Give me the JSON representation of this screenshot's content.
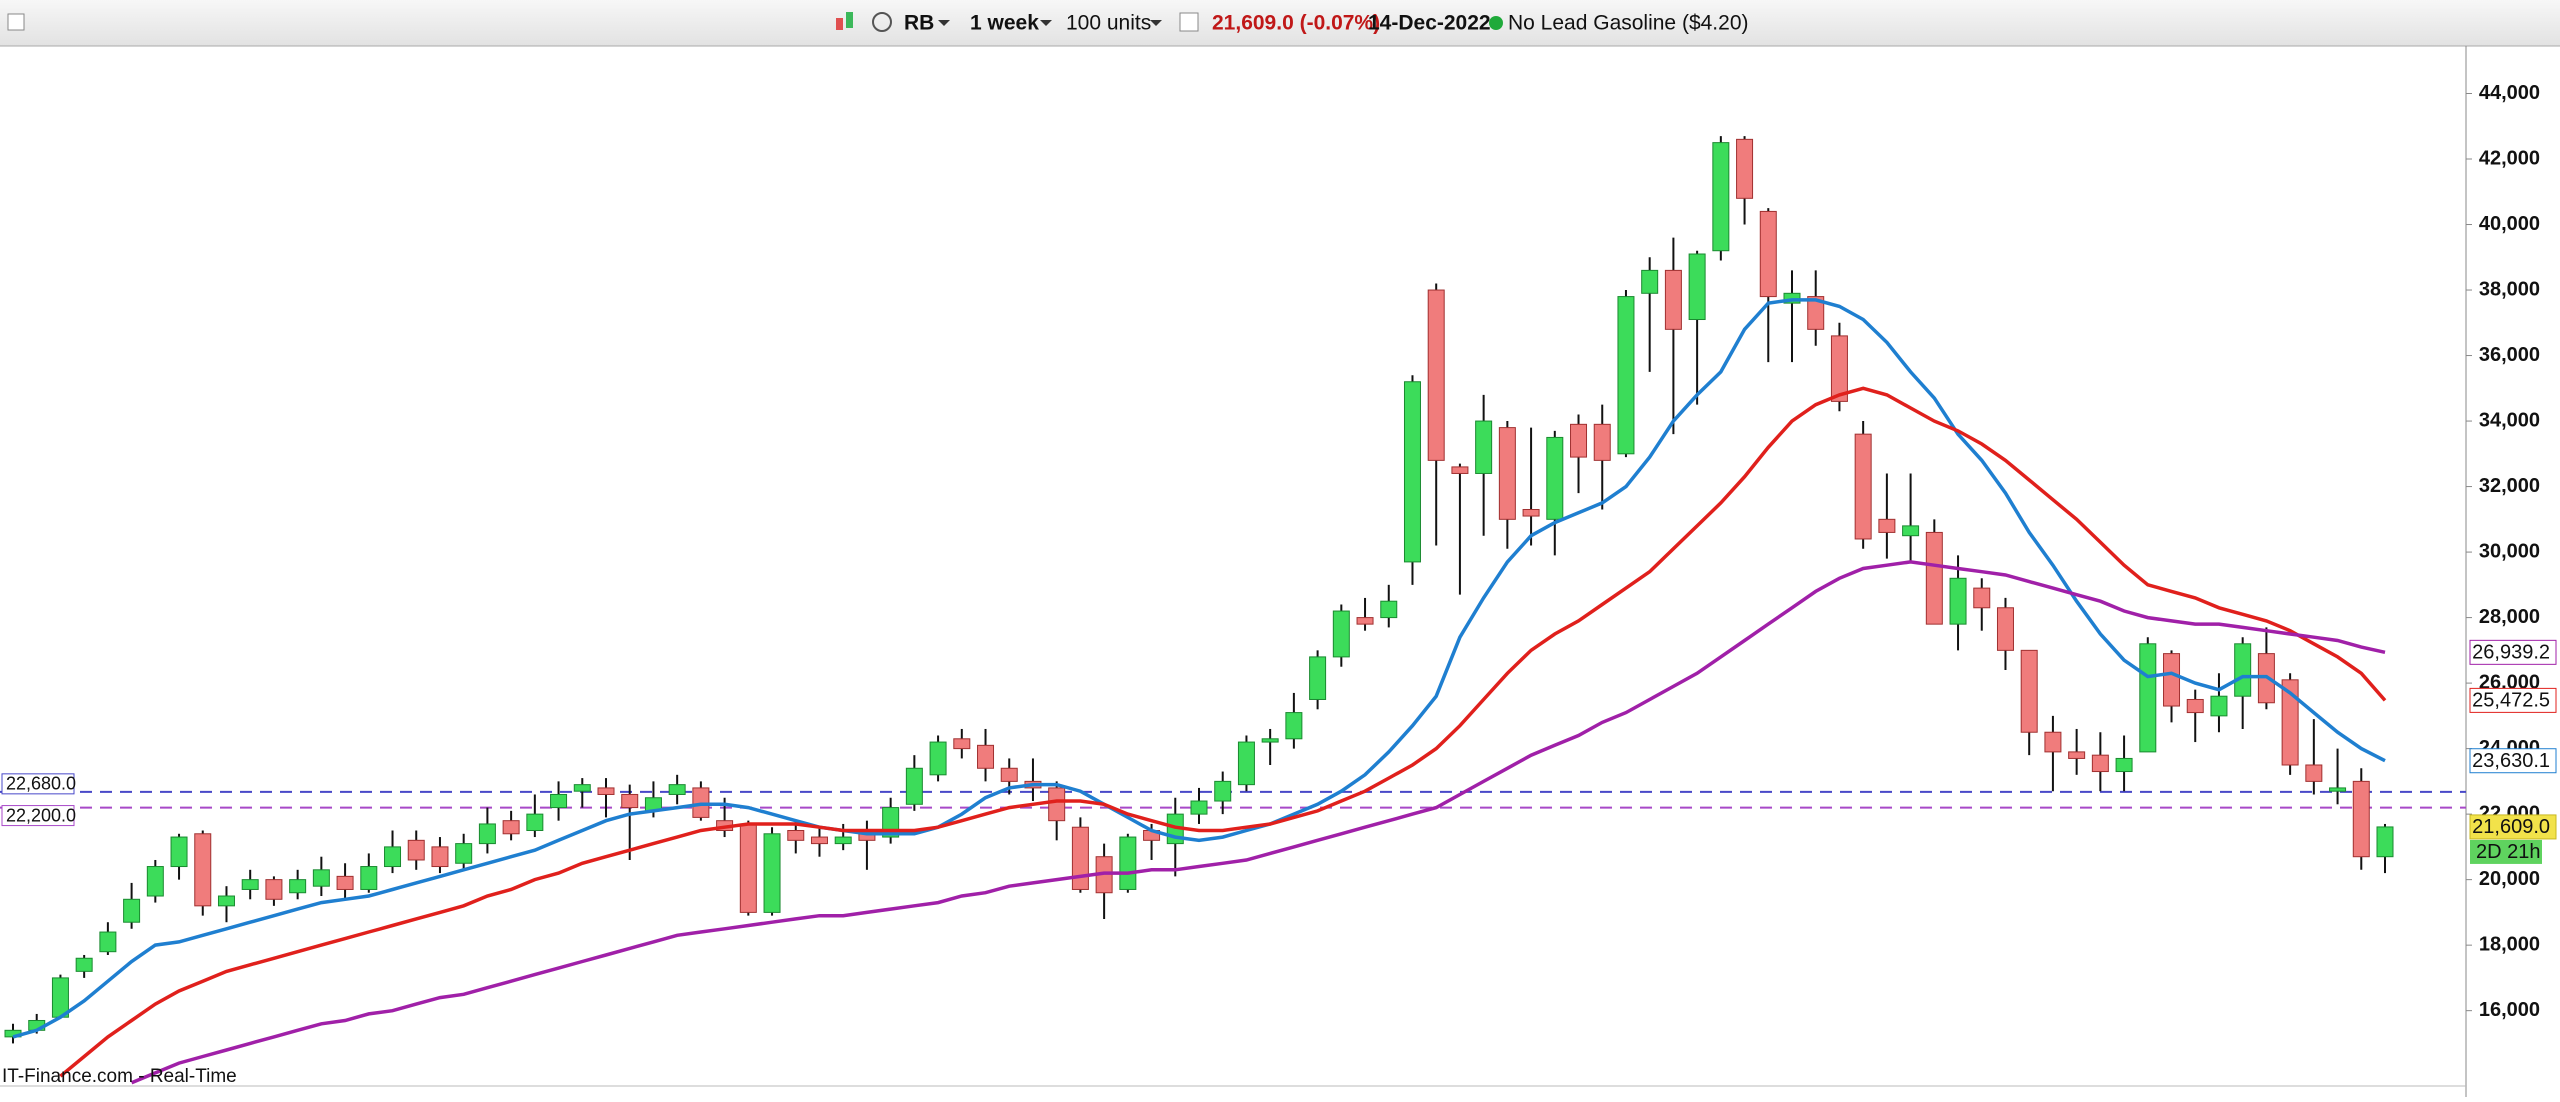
{
  "toolbar": {
    "symbol": "RB",
    "interval": "1 week",
    "units": "100 units",
    "quote": "21,609.0 (-0.07%)",
    "date": "14-Dec-2022",
    "instrument": "No Lead Gasoline ($4.20)"
  },
  "footer": "IT-Finance.com - Real-Time",
  "chart_data": {
    "type": "candlestick",
    "up_color": "#3cdc5a",
    "down_color": "#f07c7c",
    "ylim": [
      13700,
      45450
    ],
    "yticks": [
      {
        "value": 16000,
        "label": "16,000"
      },
      {
        "value": 18000,
        "label": "18,000"
      },
      {
        "value": 20000,
        "label": "20,000"
      },
      {
        "value": 22000,
        "label": "22,000"
      },
      {
        "value": 24000,
        "label": "24,000"
      },
      {
        "value": 26000,
        "label": "26,000"
      },
      {
        "value": 28000,
        "label": "28,000"
      },
      {
        "value": 30000,
        "label": "30,000"
      },
      {
        "value": 32000,
        "label": "32,000"
      },
      {
        "value": 34000,
        "label": "34,000"
      },
      {
        "value": 36000,
        "label": "36,000"
      },
      {
        "value": 38000,
        "label": "38,000"
      },
      {
        "value": 40000,
        "label": "40,000"
      },
      {
        "value": 42000,
        "label": "42,000"
      },
      {
        "value": 44000,
        "label": "44,000"
      }
    ],
    "open": [
      15200,
      15400,
      15800,
      17200,
      17800,
      18700,
      19500,
      20400,
      21400,
      19200,
      19700,
      20000,
      19600,
      19800,
      20100,
      19700,
      20400,
      21200,
      21000,
      20500,
      21100,
      21800,
      21500,
      22200,
      22700,
      22800,
      22600,
      22100,
      22600,
      22800,
      21800,
      21700,
      19000,
      21500,
      21300,
      21100,
      21400,
      21300,
      22300,
      23200,
      24300,
      24100,
      23400,
      23000,
      22800,
      21600,
      20700,
      19700,
      21500,
      21100,
      22000,
      22400,
      22900,
      24200,
      24300,
      25500,
      26800,
      28000,
      28000,
      29700,
      38000,
      32600,
      32400,
      33800,
      31300,
      31000,
      33900,
      33900,
      33000,
      37900,
      38600,
      37100,
      39200,
      42600,
      40400,
      37600,
      37800,
      36600,
      33600,
      31000,
      30500,
      30600,
      27800,
      28900,
      28300,
      27000,
      24500,
      23900,
      23800,
      23300,
      23900,
      26900,
      25500,
      25000,
      25600,
      26900,
      26100,
      23500,
      22700,
      23000,
      20700
    ],
    "high": [
      15600,
      15900,
      17100,
      17700,
      18700,
      19900,
      20600,
      21400,
      21500,
      19800,
      20300,
      20100,
      20300,
      20700,
      20500,
      20800,
      21500,
      21500,
      21300,
      21400,
      22200,
      22100,
      22600,
      23000,
      23100,
      23100,
      22900,
      23000,
      23200,
      23000,
      22500,
      21800,
      21600,
      21800,
      21600,
      21700,
      21800,
      22500,
      23800,
      24400,
      24600,
      24600,
      23700,
      23700,
      23000,
      21900,
      21100,
      21400,
      21700,
      22500,
      22800,
      23300,
      24400,
      24600,
      25700,
      27000,
      28400,
      28600,
      29000,
      35400,
      38200,
      32700,
      34800,
      34000,
      33800,
      33700,
      34200,
      34500,
      38000,
      39000,
      39600,
      39200,
      42700,
      42700,
      40500,
      38600,
      38600,
      37000,
      34000,
      32400,
      32400,
      31000,
      29900,
      29200,
      28600,
      27000,
      25000,
      24600,
      24500,
      24400,
      27400,
      27000,
      25800,
      26300,
      27400,
      27700,
      26300,
      24900,
      24000,
      23400,
      21700
    ],
    "low": [
      15000,
      15300,
      15800,
      17000,
      17700,
      18500,
      19300,
      20000,
      18900,
      18700,
      19400,
      19200,
      19400,
      19500,
      19400,
      19600,
      20200,
      20300,
      20200,
      20300,
      20800,
      21200,
      21300,
      21800,
      22200,
      21900,
      20600,
      21900,
      22300,
      21800,
      21300,
      18900,
      18900,
      20800,
      20700,
      20900,
      20300,
      21100,
      22100,
      23000,
      23700,
      23000,
      22600,
      22400,
      21200,
      19600,
      18800,
      19600,
      20600,
      20100,
      21700,
      22000,
      22700,
      23500,
      24000,
      25200,
      26500,
      27600,
      27700,
      29000,
      30200,
      28700,
      30500,
      30100,
      30200,
      29900,
      31800,
      31300,
      32900,
      35500,
      33600,
      34500,
      38900,
      40000,
      35800,
      35800,
      36300,
      34300,
      30100,
      29800,
      29700,
      27800,
      27000,
      27600,
      26400,
      23800,
      22700,
      23200,
      22700,
      22700,
      23900,
      24800,
      24200,
      24500,
      24600,
      25200,
      23200,
      22600,
      22300,
      20300,
      20200
    ],
    "close": [
      15400,
      15700,
      17000,
      17600,
      18400,
      19400,
      20400,
      21300,
      19200,
      19500,
      20000,
      19400,
      20000,
      20300,
      19700,
      20400,
      21000,
      20600,
      20400,
      21100,
      21700,
      21400,
      22000,
      22600,
      22900,
      22600,
      22200,
      22500,
      22900,
      21900,
      21500,
      19000,
      21400,
      21200,
      21100,
      21300,
      21200,
      22200,
      23400,
      24200,
      24000,
      23400,
      23000,
      22800,
      21800,
      19700,
      19600,
      21300,
      21200,
      22000,
      22400,
      23000,
      24200,
      24300,
      25100,
      26800,
      28200,
      27800,
      28500,
      35200,
      32800,
      32400,
      34000,
      31000,
      31100,
      33500,
      32900,
      32800,
      37800,
      38600,
      36800,
      39100,
      42500,
      40800,
      37800,
      37900,
      36800,
      34600,
      30400,
      30600,
      30800,
      27800,
      29200,
      28300,
      27000,
      24500,
      23900,
      23700,
      23300,
      23700,
      27200,
      25300,
      25100,
      25600,
      27200,
      25400,
      23500,
      23000,
      22800,
      20700,
      21609
    ],
    "series": [
      {
        "color": "#1f7fd0",
        "end_label": "23,630.1",
        "values": [
          15200,
          15400,
          15800,
          16300,
          16900,
          17500,
          18000,
          18100,
          18300,
          18500,
          18700,
          18900,
          19100,
          19300,
          19400,
          19500,
          19700,
          19900,
          20100,
          20300,
          20500,
          20700,
          20900,
          21200,
          21500,
          21800,
          22000,
          22100,
          22200,
          22300,
          22300,
          22200,
          22000,
          21800,
          21600,
          21500,
          21400,
          21400,
          21400,
          21600,
          22000,
          22500,
          22800,
          22900,
          22900,
          22700,
          22300,
          21900,
          21500,
          21300,
          21200,
          21300,
          21500,
          21700,
          22000,
          22300,
          22700,
          23200,
          23900,
          24700,
          25600,
          27400,
          28600,
          29700,
          30500,
          30900,
          31200,
          31500,
          32000,
          32900,
          34000,
          34800,
          35500,
          36800,
          37600,
          37700,
          37700,
          37500,
          37100,
          36400,
          35500,
          34700,
          33600,
          32800,
          31800,
          30600,
          29600,
          28500,
          27500,
          26700,
          26200,
          26300,
          26000,
          25800,
          26200,
          26200,
          25700,
          25100,
          24500,
          24000,
          23630.1
        ]
      },
      {
        "color": "#e0201c",
        "end_label": "25,472.5",
        "values": [
          null,
          null,
          14000,
          14600,
          15200,
          15700,
          16200,
          16600,
          16900,
          17200,
          17400,
          17600,
          17800,
          18000,
          18200,
          18400,
          18600,
          18800,
          19000,
          19200,
          19500,
          19700,
          20000,
          20200,
          20500,
          20700,
          20900,
          21100,
          21300,
          21500,
          21600,
          21700,
          21700,
          21700,
          21600,
          21500,
          21500,
          21500,
          21500,
          21600,
          21800,
          22000,
          22200,
          22300,
          22400,
          22400,
          22300,
          22000,
          21800,
          21600,
          21500,
          21500,
          21600,
          21700,
          21900,
          22100,
          22400,
          22700,
          23100,
          23500,
          24000,
          24700,
          25500,
          26300,
          27000,
          27500,
          27900,
          28400,
          28900,
          29400,
          30100,
          30800,
          31500,
          32300,
          33200,
          34000,
          34500,
          34800,
          35000,
          34800,
          34400,
          34000,
          33700,
          33300,
          32800,
          32200,
          31600,
          31000,
          30300,
          29600,
          29000,
          28800,
          28600,
          28300,
          28100,
          27900,
          27600,
          27200,
          26800,
          26300,
          25472.5
        ]
      },
      {
        "color": "#a020a8",
        "end_label": "26,939.2",
        "values": [
          null,
          null,
          null,
          null,
          null,
          13800,
          14100,
          14400,
          14600,
          14800,
          15000,
          15200,
          15400,
          15600,
          15700,
          15900,
          16000,
          16200,
          16400,
          16500,
          16700,
          16900,
          17100,
          17300,
          17500,
          17700,
          17900,
          18100,
          18300,
          18400,
          18500,
          18600,
          18700,
          18800,
          18900,
          18900,
          19000,
          19100,
          19200,
          19300,
          19500,
          19600,
          19800,
          19900,
          20000,
          20100,
          20200,
          20200,
          20300,
          20300,
          20400,
          20500,
          20600,
          20800,
          21000,
          21200,
          21400,
          21600,
          21800,
          22000,
          22200,
          22600,
          23000,
          23400,
          23800,
          24100,
          24400,
          24800,
          25100,
          25500,
          25900,
          26300,
          26800,
          27300,
          27800,
          28300,
          28800,
          29200,
          29500,
          29600,
          29700,
          29600,
          29500,
          29400,
          29300,
          29100,
          28900,
          28700,
          28500,
          28200,
          28000,
          27900,
          27800,
          27800,
          27700,
          27600,
          27500,
          27400,
          27300,
          27100,
          26939.2
        ]
      }
    ],
    "hlines": [
      {
        "value": 22680,
        "label": "22,680.0",
        "color": "#4848c8"
      },
      {
        "value": 22200,
        "label": "22,200.0",
        "color": "#a848c8"
      }
    ],
    "last_price": {
      "value": 21609,
      "label": "21,609.0",
      "color": "#f2e24a"
    },
    "countdown": "2D 21h"
  }
}
